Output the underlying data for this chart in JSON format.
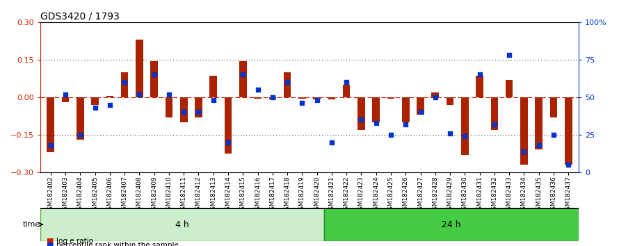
{
  "title": "GDS3420 / 1793",
  "categories": [
    "GSM182402",
    "GSM182403",
    "GSM182404",
    "GSM182405",
    "GSM182406",
    "GSM182407",
    "GSM182408",
    "GSM182409",
    "GSM182410",
    "GSM182411",
    "GSM182412",
    "GSM182413",
    "GSM182414",
    "GSM182415",
    "GSM182416",
    "GSM182417",
    "GSM182418",
    "GSM182419",
    "GSM182420",
    "GSM182421",
    "GSM182422",
    "GSM182423",
    "GSM182424",
    "GSM182425",
    "GSM182426",
    "GSM182427",
    "GSM182428",
    "GSM182429",
    "GSM182430",
    "GSM182431",
    "GSM182432",
    "GSM182433",
    "GSM182434",
    "GSM182435",
    "GSM182436",
    "GSM182437"
  ],
  "log_ratio": [
    -0.22,
    -0.02,
    -0.17,
    -0.03,
    0.005,
    0.1,
    0.23,
    0.145,
    -0.08,
    -0.1,
    -0.08,
    0.085,
    -0.225,
    0.145,
    -0.005,
    -0.01,
    0.1,
    -0.005,
    -0.01,
    -0.01,
    0.05,
    -0.13,
    -0.1,
    -0.005,
    -0.1,
    -0.07,
    0.02,
    -0.03,
    -0.23,
    0.085,
    -0.13,
    0.07,
    -0.27,
    -0.21,
    -0.08,
    -0.27
  ],
  "percentile": [
    18,
    52,
    25,
    43,
    45,
    60,
    52,
    65,
    52,
    40,
    40,
    48,
    20,
    65,
    55,
    50,
    60,
    46,
    48,
    20,
    60,
    35,
    33,
    25,
    32,
    40,
    50,
    26,
    24,
    65,
    32,
    78,
    14,
    18,
    25,
    5
  ],
  "group_4h_count": 19,
  "group_labels": [
    "4 h",
    "24 h"
  ],
  "bar_color": "#aa2200",
  "dot_color": "#0033cc",
  "ylim": [
    -0.3,
    0.3
  ],
  "y2lim": [
    0,
    100
  ],
  "yticks": [
    -0.3,
    -0.15,
    0.0,
    0.15,
    0.3
  ],
  "y2ticks": [
    0,
    25,
    50,
    75,
    100
  ],
  "y2ticklabels": [
    "0",
    "25",
    "50",
    "75",
    "100%"
  ],
  "color_4h": "#cceecc",
  "color_24h": "#44cc44",
  "bar_color_legend": "#cc2200",
  "dot_color_legend": "#0033cc",
  "legend_log_label": "log e ratio",
  "legend_pct_label": "percentile rank within the sample",
  "title_fontsize": 10,
  "tick_fontsize": 6.5
}
